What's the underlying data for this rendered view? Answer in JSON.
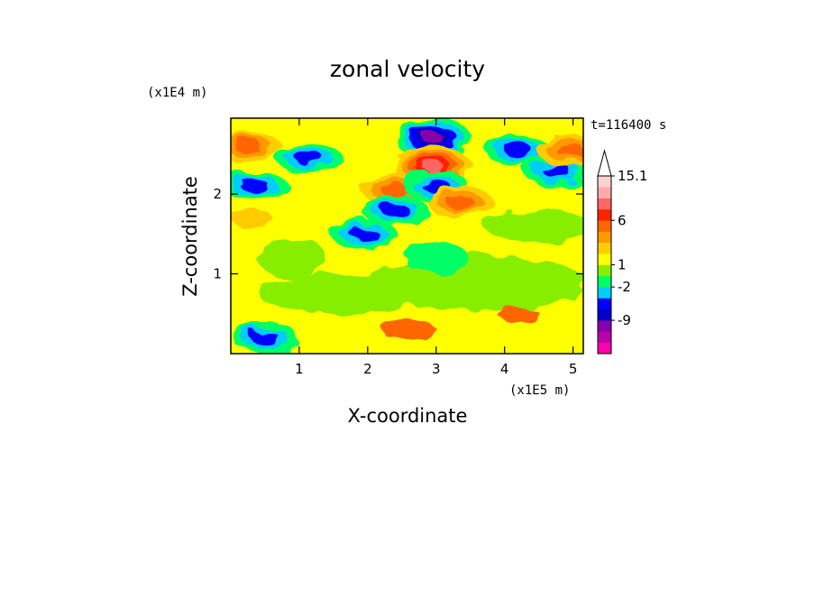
{
  "chart_data": {
    "type": "heatmap",
    "title": "zonal velocity",
    "xlabel": "X-coordinate",
    "ylabel": "Z-coordinate",
    "x_unit": "(x1E5 m)",
    "y_unit": "(x1E4 m)",
    "time_label": "t=116400 s",
    "xlim": [
      0,
      5.15
    ],
    "ylim": [
      0,
      2.95
    ],
    "x_ticks": [
      1,
      2,
      3,
      4,
      5
    ],
    "x_tick_labels": [
      "1",
      "2",
      "3",
      "4",
      "5"
    ],
    "y_ticks": [
      1,
      2
    ],
    "y_tick_labels": [
      "1",
      "2"
    ],
    "colorbar": {
      "colors": [
        "#ff00aa",
        "#bb00aa",
        "#8800aa",
        "#0000cc",
        "#0000ff",
        "#00ccff",
        "#00ff66",
        "#88ee00",
        "#ffff00",
        "#ffcc00",
        "#ff9900",
        "#ff6600",
        "#ff2200",
        "#ff6666",
        "#ffaaaa",
        "#ffd0d0"
      ],
      "extend_max": true,
      "tick_labels": [
        "-9",
        "-2",
        "1",
        "6",
        "15.1"
      ],
      "tick_levels": [
        3,
        6,
        8,
        12,
        16
      ]
    },
    "features": [
      {
        "x": 2.95,
        "z": 2.7,
        "value": -12
      },
      {
        "x": 2.95,
        "z": 2.35,
        "value": 12
      },
      {
        "x": 2.4,
        "z": 2.05,
        "value": 6
      },
      {
        "x": 3.0,
        "z": 2.1,
        "value": -6
      },
      {
        "x": 2.4,
        "z": 1.8,
        "value": -6
      },
      {
        "x": 3.35,
        "z": 1.9,
        "value": 4
      },
      {
        "x": 0.35,
        "z": 2.1,
        "value": -6
      },
      {
        "x": 1.15,
        "z": 2.45,
        "value": -6
      },
      {
        "x": 4.75,
        "z": 2.3,
        "value": -6
      },
      {
        "x": 4.2,
        "z": 2.55,
        "value": -6
      },
      {
        "x": 0.25,
        "z": 2.6,
        "value": 4
      },
      {
        "x": 4.95,
        "z": 2.55,
        "value": 4
      },
      {
        "x": 1.95,
        "z": 1.5,
        "value": -6
      },
      {
        "x": 0.5,
        "z": 0.2,
        "value": -6
      },
      {
        "x": 3.0,
        "z": 1.2,
        "value": -1
      }
    ]
  }
}
